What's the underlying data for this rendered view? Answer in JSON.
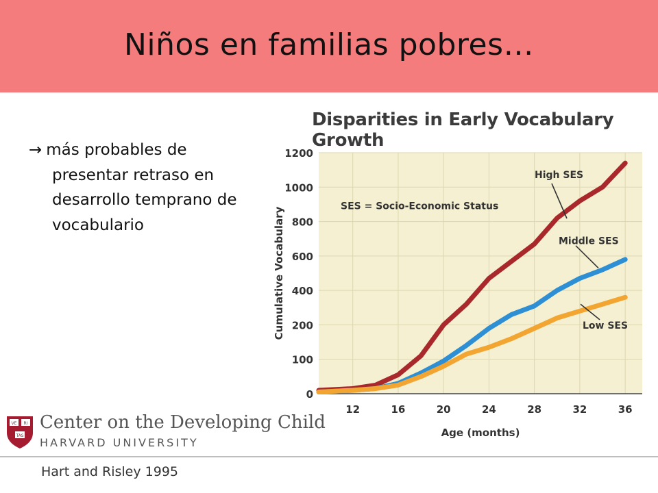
{
  "slide": {
    "title": "Niños en familias pobres…",
    "bullet_arrow": "→",
    "bullet_lines": [
      "más probables de",
      "presentar retraso en",
      "desarrollo temprano de",
      "vocabulario"
    ],
    "citation": "Hart and Risley 1995",
    "header_color": "#f47c7c"
  },
  "branding": {
    "org_name": "Center on the Developing Child",
    "university": "HARVARD UNIVERSITY",
    "shield_icon": "harvard-shield-icon",
    "shield_text": [
      "VE",
      "RI",
      "TAS"
    ]
  },
  "chart_data": {
    "type": "line",
    "title": "Disparities in Early Vocabulary Growth",
    "xlabel": "Age (months)",
    "ylabel": "Cumulative Vocabulary",
    "annotation": "SES = Socio-Economic Status",
    "xlim": [
      9,
      37.5
    ],
    "x_ticks": [
      12,
      16,
      20,
      24,
      28,
      32,
      36
    ],
    "y_ticks": [
      0,
      100,
      200,
      400,
      600,
      800,
      1000,
      1200
    ],
    "y_positions_note": "tick positions follow the printed axis",
    "background_color": "#f5f0d2",
    "grid": true,
    "series": [
      {
        "name": "High SES",
        "color": "#a8282b",
        "x": [
          9,
          12,
          14,
          16,
          18,
          20,
          22,
          24,
          26,
          28,
          30,
          32,
          34,
          36
        ],
        "y": [
          10,
          15,
          25,
          55,
          110,
          200,
          320,
          470,
          570,
          670,
          820,
          920,
          1000,
          1140
        ]
      },
      {
        "name": "Middle SES",
        "color": "#2e8fd4",
        "x": [
          9,
          12,
          14,
          16,
          18,
          20,
          22,
          24,
          26,
          28,
          30,
          32,
          34,
          36
        ],
        "y": [
          5,
          10,
          15,
          30,
          60,
          95,
          140,
          190,
          260,
          310,
          400,
          470,
          520,
          580
        ]
      },
      {
        "name": "Low SES",
        "color": "#f2a531",
        "x": [
          9,
          12,
          14,
          16,
          18,
          20,
          22,
          24,
          26,
          28,
          30,
          32,
          34,
          36
        ],
        "y": [
          5,
          10,
          15,
          25,
          50,
          80,
          115,
          135,
          160,
          190,
          240,
          280,
          320,
          360
        ]
      }
    ]
  }
}
